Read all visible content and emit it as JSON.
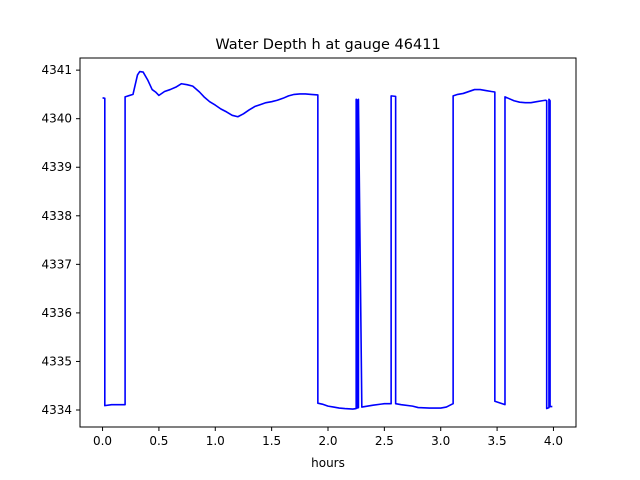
{
  "chart_data": {
    "type": "line",
    "title": "Water Depth h at gauge 46411",
    "xlabel": "hours",
    "ylabel": "",
    "xlim": [
      -0.2,
      4.2
    ],
    "ylim": [
      4333.65,
      4341.25
    ],
    "xticks": [
      0.0,
      0.5,
      1.0,
      1.5,
      2.0,
      2.5,
      3.0,
      3.5,
      4.0
    ],
    "xtick_labels": [
      "0.0",
      "0.5",
      "1.0",
      "1.5",
      "2.0",
      "2.5",
      "3.0",
      "3.5",
      "4.0"
    ],
    "yticks": [
      4334,
      4335,
      4336,
      4337,
      4338,
      4339,
      4340,
      4341
    ],
    "ytick_labels": [
      "4334",
      "4335",
      "4336",
      "4337",
      "4338",
      "4339",
      "4340",
      "4341"
    ],
    "grid": false,
    "series": [
      {
        "color": "#0000ff",
        "x": [
          0.0,
          0.02,
          0.02,
          0.08,
          0.2,
          0.2,
          0.27,
          0.31,
          0.33,
          0.36,
          0.4,
          0.44,
          0.47,
          0.5,
          0.55,
          0.6,
          0.65,
          0.7,
          0.75,
          0.8,
          0.86,
          0.9,
          0.95,
          1.0,
          1.05,
          1.1,
          1.15,
          1.2,
          1.25,
          1.3,
          1.35,
          1.4,
          1.45,
          1.5,
          1.55,
          1.6,
          1.65,
          1.7,
          1.75,
          1.8,
          1.85,
          1.91,
          1.91,
          1.95,
          2.0,
          2.05,
          2.1,
          2.15,
          2.22,
          2.25,
          2.25,
          2.26,
          2.26,
          2.27,
          2.27,
          2.3,
          2.4,
          2.5,
          2.56,
          2.56,
          2.6,
          2.6,
          2.65,
          2.75,
          2.8,
          2.9,
          3.0,
          3.05,
          3.1,
          3.11,
          3.11,
          3.15,
          3.2,
          3.3,
          3.35,
          3.4,
          3.45,
          3.48,
          3.48,
          3.52,
          3.57,
          3.57,
          3.6,
          3.65,
          3.7,
          3.75,
          3.8,
          3.85,
          3.9,
          3.93,
          3.94,
          3.94,
          3.96,
          3.96,
          3.97,
          3.97,
          3.99
        ],
        "y": [
          4340.43,
          4340.42,
          4334.09,
          4334.11,
          4334.11,
          4340.45,
          4340.5,
          4340.9,
          4340.97,
          4340.96,
          4340.8,
          4340.6,
          4340.55,
          4340.48,
          4340.56,
          4340.6,
          4340.65,
          4340.72,
          4340.7,
          4340.67,
          4340.55,
          4340.45,
          4340.35,
          4340.28,
          4340.2,
          4340.14,
          4340.07,
          4340.04,
          4340.1,
          4340.18,
          4340.25,
          4340.29,
          4340.33,
          4340.35,
          4340.38,
          4340.42,
          4340.47,
          4340.5,
          4340.51,
          4340.51,
          4340.5,
          4340.49,
          4334.14,
          4334.12,
          4334.08,
          4334.06,
          4334.04,
          4334.03,
          4334.02,
          4334.03,
          4340.4,
          4340.38,
          4334.04,
          4334.05,
          4340.4,
          4334.06,
          4334.1,
          4334.13,
          4334.13,
          4340.47,
          4340.46,
          4334.13,
          4334.11,
          4334.08,
          4334.05,
          4334.04,
          4334.04,
          4334.06,
          4334.12,
          4334.13,
          4340.47,
          4340.5,
          4340.52,
          4340.6,
          4340.6,
          4340.58,
          4340.56,
          4340.55,
          4334.18,
          4334.15,
          4334.11,
          4340.45,
          4340.42,
          4340.37,
          4340.34,
          4340.33,
          4340.33,
          4340.35,
          4340.37,
          4340.38,
          4340.37,
          4334.03,
          4334.05,
          4340.4,
          4340.37,
          4334.07,
          4334.07
        ]
      }
    ]
  }
}
